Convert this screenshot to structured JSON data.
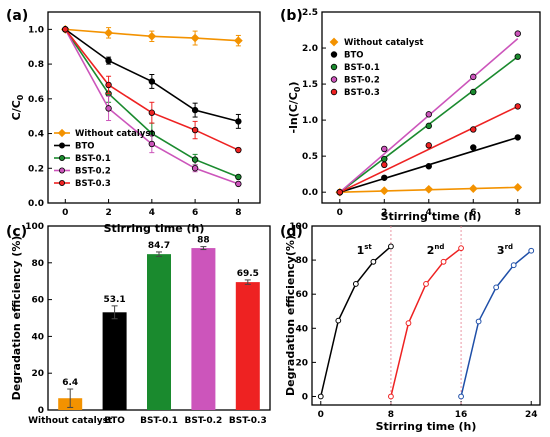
{
  "chart_data": [
    {
      "panel_label": "(a)",
      "type": "line",
      "xlabel": "Stirring time (h)",
      "ylabel": "C/C",
      "ylabel_sub": "0",
      "xlim": [
        -0.8,
        9
      ],
      "ylim": [
        0,
        1.1
      ],
      "xticks": [
        "0",
        "2",
        "4",
        "6",
        "8"
      ],
      "yticks": [
        "0.0",
        "0.2",
        "0.4",
        "0.6",
        "0.8",
        "1.0"
      ],
      "legend_position": "bottom-left",
      "x": [
        0,
        2,
        4,
        6,
        8
      ],
      "series": [
        {
          "name": "Without catalyst",
          "color": "#f39200",
          "marker": "diamond",
          "values": [
            1.0,
            0.98,
            0.96,
            0.95,
            0.935
          ],
          "errors": [
            0,
            0.03,
            0.03,
            0.04,
            0.03
          ]
        },
        {
          "name": "BTO",
          "color": "#000000",
          "marker": "circle",
          "values": [
            1.0,
            0.82,
            0.7,
            0.535,
            0.47
          ],
          "errors": [
            0,
            0.02,
            0.04,
            0.04,
            0.04
          ]
        },
        {
          "name": "BST-0.1",
          "color": "#1a8a2e",
          "marker": "circle",
          "values": [
            1.0,
            0.63,
            0.4,
            0.25,
            0.15
          ],
          "errors": [
            0,
            0.05,
            0.06,
            0.03,
            0.01
          ]
        },
        {
          "name": "BST-0.2",
          "color": "#cc55bb",
          "marker": "circle",
          "values": [
            1.0,
            0.545,
            0.34,
            0.2,
            0.11
          ],
          "errors": [
            0,
            0.07,
            0.05,
            0.02,
            0.01
          ]
        },
        {
          "name": "BST-0.3",
          "color": "#ee2222",
          "marker": "circle",
          "values": [
            1.0,
            0.68,
            0.52,
            0.42,
            0.305
          ],
          "errors": [
            0,
            0.05,
            0.06,
            0.05,
            0.01
          ]
        }
      ]
    },
    {
      "panel_label": "(b)",
      "type": "line",
      "xlabel": "Stirring time (h)",
      "ylabel": "-ln(C/C",
      "ylabel_sub": "0",
      "ylabel_end": ")",
      "xlim": [
        -0.8,
        9
      ],
      "ylim": [
        -0.15,
        2.5
      ],
      "xticks": [
        "0",
        "2",
        "4",
        "6",
        "8"
      ],
      "yticks": [
        "0.0",
        "0.5",
        "1.0",
        "1.5",
        "2.0",
        "2.5"
      ],
      "legend_position": "top-left",
      "x": [
        0,
        2,
        4,
        6,
        8
      ],
      "series": [
        {
          "name": "Without catalyst",
          "color": "#f39200",
          "marker": "diamond",
          "values": [
            0,
            0.02,
            0.04,
            0.05,
            0.067
          ],
          "fit": [
            0,
            0.067
          ]
        },
        {
          "name": "BTO",
          "color": "#000000",
          "marker": "circle",
          "values": [
            0,
            0.2,
            0.36,
            0.62,
            0.76
          ],
          "fit": [
            0,
            0.76
          ]
        },
        {
          "name": "BST-0.1",
          "color": "#1a8a2e",
          "marker": "circle",
          "values": [
            0,
            0.46,
            0.92,
            1.39,
            1.88
          ],
          "fit": [
            0,
            1.88
          ]
        },
        {
          "name": "BST-0.2",
          "color": "#cc55bb",
          "marker": "circle",
          "values": [
            0,
            0.6,
            1.08,
            1.6,
            2.2
          ],
          "fit": [
            0,
            2.13
          ]
        },
        {
          "name": "BST-0.3",
          "color": "#ee2222",
          "marker": "circle",
          "values": [
            0,
            0.38,
            0.65,
            0.87,
            1.19
          ],
          "fit": [
            0,
            1.19
          ]
        }
      ]
    },
    {
      "panel_label": "(c)",
      "type": "bar",
      "ylabel": "Degradation efficiency (%)",
      "ylim": [
        0,
        100
      ],
      "yticks": [
        "0",
        "20",
        "40",
        "60",
        "80",
        "100"
      ],
      "categories": [
        "Without catalyst",
        "BTO",
        "BST-0.1",
        "BST-0.2",
        "BST-0.3"
      ],
      "values": [
        6.4,
        53.1,
        84.7,
        88,
        69.5
      ],
      "value_labels": [
        "6.4",
        "53.1",
        "84.7",
        "88",
        "69.5"
      ],
      "errors": [
        5,
        3.5,
        1.2,
        0.8,
        1.2
      ],
      "colors": [
        "#f39200",
        "#000000",
        "#1a8a2e",
        "#cc55bb",
        "#ee2222"
      ]
    },
    {
      "panel_label": "(d)",
      "type": "line",
      "xlabel": "Stirring time (h)",
      "ylabel": "Degradation efficiency(%)",
      "xlim": [
        -1,
        25
      ],
      "ylim": [
        -5,
        100
      ],
      "xticks": [
        "0",
        "8",
        "16",
        "24"
      ],
      "yticks": [
        "0",
        "20",
        "40",
        "60",
        "80",
        "100"
      ],
      "cycle_separators": [
        8,
        16
      ],
      "series": [
        {
          "name": "1st",
          "color": "#000000",
          "x": [
            0,
            2,
            4,
            6,
            8
          ],
          "values": [
            0,
            44.5,
            66,
            79,
            88
          ]
        },
        {
          "name": "2nd",
          "color": "#ee2222",
          "x": [
            8,
            10,
            12,
            14,
            16
          ],
          "values": [
            0,
            43,
            66,
            79,
            87
          ]
        },
        {
          "name": "3rd",
          "color": "#1f4fa8",
          "x": [
            16,
            18,
            20,
            22,
            24
          ],
          "values": [
            0,
            44,
            64,
            77,
            85.5
          ]
        }
      ],
      "annotations": [
        {
          "base": "1",
          "sup": "st",
          "x": 5,
          "y": 86
        },
        {
          "base": "2",
          "sup": "nd",
          "x": 13,
          "y": 86
        },
        {
          "base": "3",
          "sup": "rd",
          "x": 21,
          "y": 86
        }
      ]
    }
  ]
}
